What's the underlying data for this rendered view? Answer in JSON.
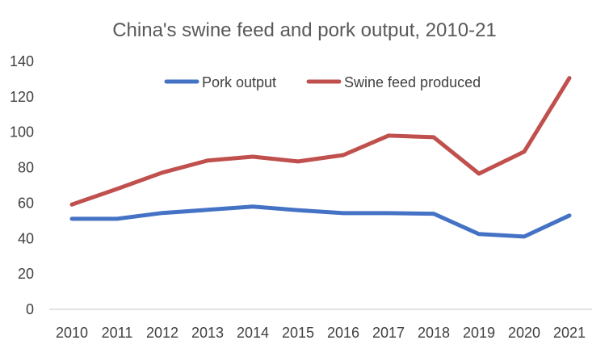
{
  "chart_data": {
    "type": "line",
    "title": "China's swine feed and pork output, 2010-21",
    "xlabel": "",
    "ylabel": "",
    "categories": [
      "2010",
      "2011",
      "2012",
      "2013",
      "2014",
      "2015",
      "2016",
      "2017",
      "2018",
      "2019",
      "2020",
      "2021"
    ],
    "ylim": [
      0,
      140
    ],
    "yticks": [
      0,
      20,
      40,
      60,
      80,
      100,
      120,
      140
    ],
    "grid": false,
    "legend_position": "top",
    "series": [
      {
        "name": "Pork output",
        "color": "#4472C4",
        "values": [
          51.1,
          51.1,
          54.4,
          56.2,
          58.0,
          56.0,
          54.3,
          54.3,
          54.0,
          42.5,
          41.1,
          53.0
        ]
      },
      {
        "name": "Swine feed produced",
        "color": "#C0504D",
        "values": [
          59.2,
          68.0,
          77.2,
          84.0,
          86.2,
          83.5,
          87.1,
          98.1,
          97.2,
          76.6,
          89.0,
          130.6
        ]
      }
    ]
  }
}
